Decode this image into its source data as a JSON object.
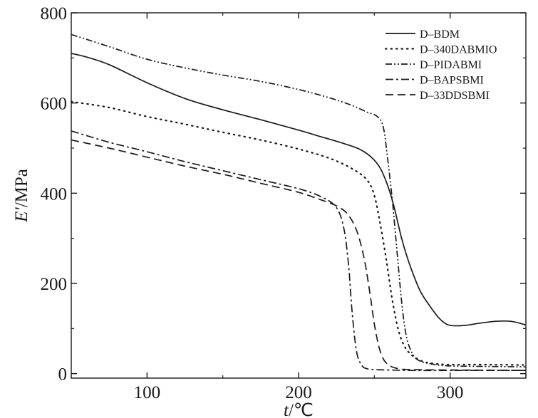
{
  "chart_data": {
    "type": "line",
    "xlabel": {
      "italic": "t",
      "rest": "/℃"
    },
    "ylabel": {
      "italic": "E'",
      "rest": "/MPa"
    },
    "xlim": [
      50,
      350
    ],
    "ylim": [
      -10,
      800
    ],
    "xticks": [
      100,
      200,
      300
    ],
    "yticks": [
      0,
      200,
      400,
      600,
      800
    ],
    "xtick_labels": [
      "100",
      "200",
      "300"
    ],
    "ytick_labels": [
      "0",
      "200",
      "400",
      "600",
      "800"
    ],
    "legend_position": "top-right",
    "grid": false,
    "series": [
      {
        "name": "D–BDM",
        "dash": "solid",
        "x": [
          50,
          60,
          75,
          100,
          125,
          150,
          175,
          200,
          215,
          230,
          240,
          248,
          254,
          259,
          263,
          268,
          273,
          280,
          287,
          293,
          298,
          303,
          310,
          320,
          330,
          340,
          350
        ],
        "y": [
          710,
          702,
          685,
          645,
          610,
          585,
          563,
          540,
          525,
          510,
          498,
          480,
          455,
          415,
          370,
          300,
          245,
          185,
          148,
          122,
          109,
          106,
          107,
          112,
          116,
          116,
          108
        ]
      },
      {
        "name": "D–340DABMIO",
        "dash": "dotted",
        "x": [
          50,
          75,
          100,
          125,
          150,
          175,
          200,
          220,
          235,
          245,
          250,
          254,
          258,
          262,
          266,
          270,
          275,
          282,
          290,
          300,
          320,
          350
        ],
        "y": [
          603,
          590,
          570,
          553,
          535,
          518,
          498,
          478,
          455,
          430,
          395,
          330,
          250,
          160,
          95,
          60,
          40,
          27,
          22,
          20,
          20,
          19
        ]
      },
      {
        "name": "D–PIDABMI",
        "dash": "dashdotdot",
        "x": [
          50,
          75,
          100,
          125,
          150,
          175,
          200,
          220,
          235,
          245,
          252,
          256,
          259,
          262,
          265,
          268,
          271,
          275,
          280,
          290,
          300,
          320,
          350
        ],
        "y": [
          752,
          725,
          697,
          678,
          662,
          648,
          630,
          612,
          595,
          580,
          570,
          545,
          470,
          380,
          270,
          160,
          85,
          45,
          28,
          20,
          17,
          16,
          15
        ]
      },
      {
        "name": "D–BAPSBMI",
        "dash": "dashdot",
        "x": [
          50,
          75,
          100,
          125,
          150,
          175,
          200,
          215,
          225,
          230,
          233,
          235,
          237,
          239,
          242,
          245,
          250,
          260,
          275,
          300,
          350
        ],
        "y": [
          538,
          513,
          492,
          470,
          450,
          430,
          410,
          392,
          368,
          320,
          240,
          150,
          80,
          38,
          17,
          11,
          9,
          8,
          7,
          7,
          7
        ]
      },
      {
        "name": "D–33DDSBMI",
        "dash": "dashed",
        "x": [
          50,
          75,
          100,
          125,
          150,
          175,
          200,
          215,
          225,
          232,
          238,
          243,
          247,
          250,
          253,
          256,
          260,
          266,
          275,
          300,
          350
        ],
        "y": [
          518,
          500,
          480,
          460,
          442,
          422,
          402,
          385,
          372,
          355,
          320,
          260,
          180,
          110,
          60,
          32,
          18,
          11,
          9,
          8,
          7
        ]
      }
    ]
  }
}
